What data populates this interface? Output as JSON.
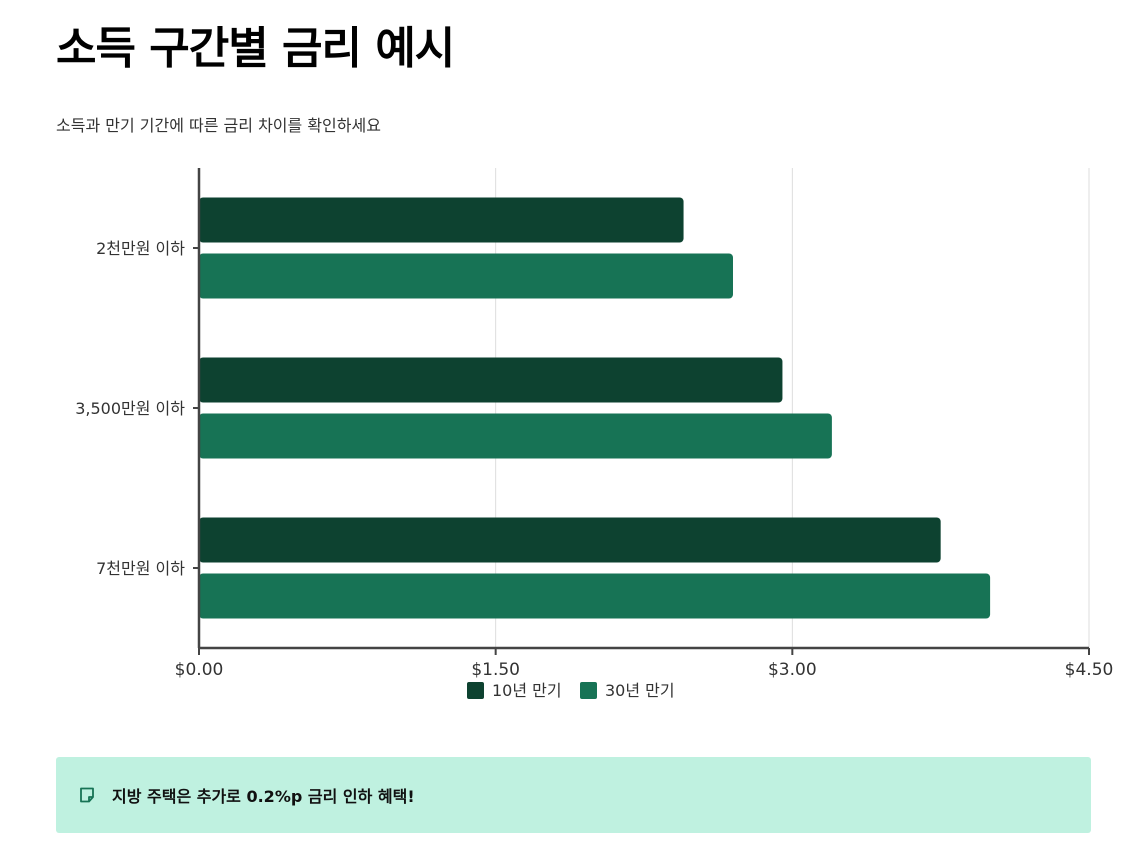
{
  "page": {
    "title": "소득 구간별 금리 예시",
    "subtitle": "소득과 만기 기간에 따른 금리 차이를 확인하세요"
  },
  "chart_data": {
    "type": "bar",
    "orientation": "horizontal",
    "categories": [
      "2천만원 이하",
      "3,500만원 이하",
      "7천만원 이하"
    ],
    "series": [
      {
        "name": "10년 만기",
        "color": "#0d4230",
        "values": [
          2.45,
          2.95,
          3.75
        ]
      },
      {
        "name": "30년 만기",
        "color": "#177355",
        "values": [
          2.7,
          3.2,
          4.0
        ]
      }
    ],
    "xlim": [
      0,
      4.5
    ],
    "x_ticks": [
      0,
      1.5,
      3.0,
      4.5
    ],
    "x_tick_labels": [
      "$0.00",
      "$1.50",
      "$3.00",
      "$4.50"
    ],
    "grid": true,
    "legend_position": "bottom"
  },
  "note": {
    "icon": "note-icon",
    "text": "지방 주택은 추가로 0.2%p 금리 인하 혜택!"
  }
}
